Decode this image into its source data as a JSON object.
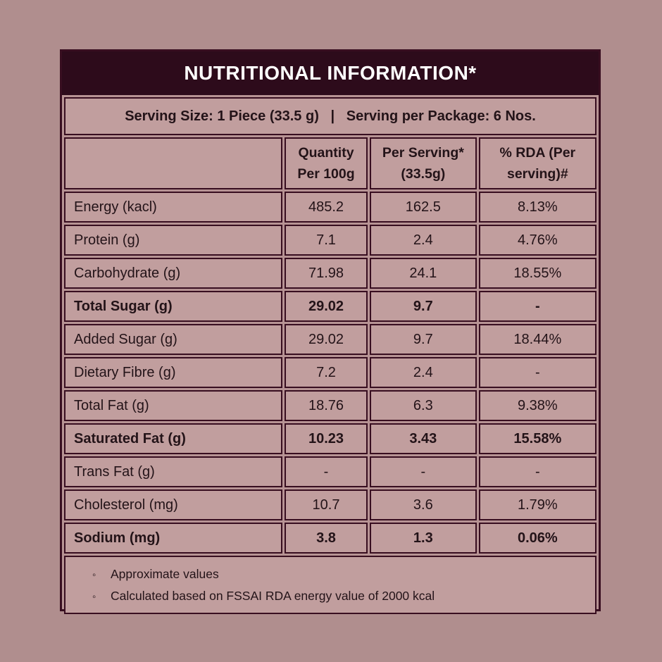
{
  "title": "NUTRITIONAL INFORMATION*",
  "serving_line": "Serving Size: 1 Piece (33.5 g)   |   Serving per Package: 6 Nos.",
  "table": {
    "columns": [
      "",
      "Quantity Per 100g",
      "Per Serving* (33.5g)",
      "% RDA (Per serving)#"
    ],
    "rows": [
      {
        "label": "Energy (kacl)",
        "per100": "485.2",
        "serving": "162.5",
        "rda": "8.13%",
        "bold": false
      },
      {
        "label": "Protein (g)",
        "per100": "7.1",
        "serving": "2.4",
        "rda": "4.76%",
        "bold": false
      },
      {
        "label": "Carbohydrate (g)",
        "per100": "71.98",
        "serving": "24.1",
        "rda": "18.55%",
        "bold": false
      },
      {
        "label": "Total Sugar (g)",
        "per100": "29.02",
        "serving": "9.7",
        "rda": "-",
        "bold": true
      },
      {
        "label": "Added Sugar (g)",
        "per100": "29.02",
        "serving": "9.7",
        "rda": "18.44%",
        "bold": false
      },
      {
        "label": "Dietary Fibre (g)",
        "per100": "7.2",
        "serving": "2.4",
        "rda": "-",
        "bold": false
      },
      {
        "label": "Total Fat (g)",
        "per100": "18.76",
        "serving": "6.3",
        "rda": "9.38%",
        "bold": false
      },
      {
        "label": "Saturated Fat (g)",
        "per100": "10.23",
        "serving": "3.43",
        "rda": "15.58%",
        "bold": true
      },
      {
        "label": "Trans Fat (g)",
        "per100": "-",
        "serving": "-",
        "rda": "-",
        "bold": false
      },
      {
        "label": "Cholesterol (mg)",
        "per100": "10.7",
        "serving": "3.6",
        "rda": "1.79%",
        "bold": false
      },
      {
        "label": "Sodium (mg)",
        "per100": "3.8",
        "serving": "1.3",
        "rda": "0.06%",
        "bold": true
      }
    ]
  },
  "footnotes": [
    "Approximate values",
    "Calculated based on FSSAI RDA energy value of 2000 kcal"
  ],
  "bullet_glyph": "◦",
  "colors": {
    "page_background": "#b08e8e",
    "panel_background": "#b79394",
    "title_background": "#2d0b1b",
    "title_text": "#ffffff",
    "cell_background": "#c19e9e",
    "border": "#380e20",
    "body_text": "#231318"
  }
}
